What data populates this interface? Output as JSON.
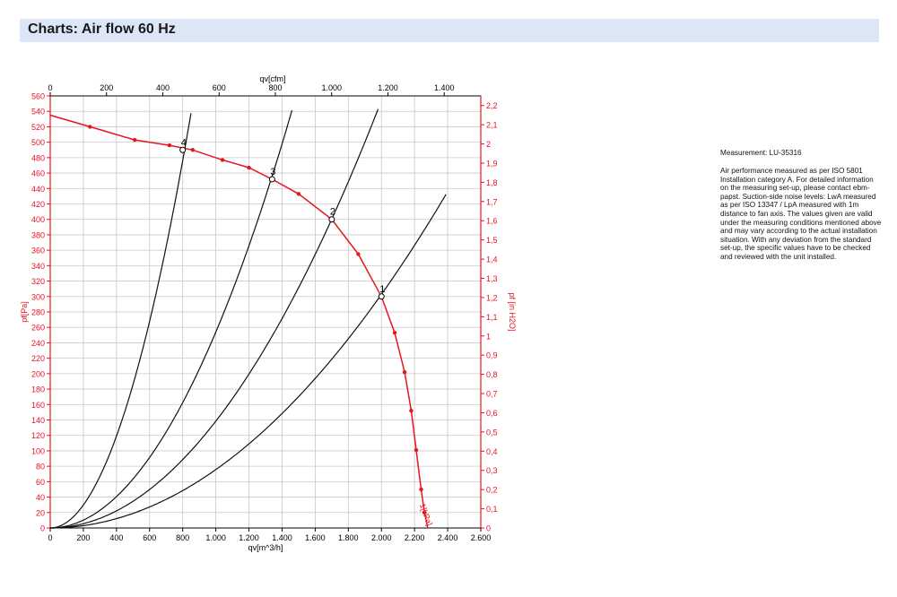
{
  "header": {
    "title": "Charts: Air flow 60 Hz"
  },
  "side_panel": {
    "measurement": "Measurement: LU-35316",
    "description": "Air performance measured as per ISO 5801 Installation category A. For detailed information on the measuring set-up, please contact ebm-papst. Suction-side noise levels: LwA measured as per ISO 13347 / LpA measured with 1m distance to fan axis. The values given are valid under the measuring conditions mentioned above and may vary according to the actual installation situation. With any deviation from the standard set-up, the specific values have to be checked and reviewed with the unit installed."
  },
  "colors": {
    "header_bg": "#dde6f7",
    "fan_curve": "#e8141e",
    "system_curves": "#111111",
    "grid": "#c8c8c8"
  },
  "chart_data": {
    "type": "line",
    "title": "",
    "xlabel": "qv[m^3/h]",
    "x2label": "qv[cfm]",
    "ylabel": "pf[Pa]",
    "y2label": "pf [in H2O]",
    "xlim": [
      0,
      2600
    ],
    "ylim": [
      0,
      560
    ],
    "x2lim": [
      0,
      1530
    ],
    "y2lim": [
      0,
      2.25
    ],
    "x_ticks": [
      "0",
      "200",
      "400",
      "600",
      "800",
      "1.000",
      "1.200",
      "1.400",
      "1.600",
      "1.800",
      "2.000",
      "2.200",
      "2.400",
      "2.600"
    ],
    "y_ticks": [
      "0",
      "20",
      "40",
      "60",
      "80",
      "100",
      "120",
      "140",
      "160",
      "180",
      "200",
      "220",
      "240",
      "260",
      "280",
      "300",
      "320",
      "340",
      "360",
      "380",
      "400",
      "420",
      "440",
      "460",
      "480",
      "500",
      "520",
      "540",
      "560"
    ],
    "x2_ticks": [
      "0",
      "200",
      "400",
      "600",
      "800",
      "1.000",
      "1.200",
      "1.400"
    ],
    "y2_ticks": [
      "0",
      "0,1",
      "0,2",
      "0,3",
      "0,4",
      "0,5",
      "0,6",
      "0,7",
      "0,8",
      "0,9",
      "1",
      "1,1",
      "1,2",
      "1,3",
      "1,4",
      "1,5",
      "1,6",
      "1,7",
      "1,8",
      "1,9",
      "2",
      "2,1",
      "2,2"
    ],
    "x2_values": [
      0,
      200,
      400,
      600,
      800,
      1000,
      1200,
      1400
    ],
    "y2_values": [
      0,
      0.1,
      0.2,
      0.3,
      0.4,
      0.5,
      0.6,
      0.7,
      0.8,
      0.9,
      1.0,
      1.1,
      1.2,
      1.3,
      1.4,
      1.5,
      1.6,
      1.7,
      1.8,
      1.9,
      2.0,
      2.1,
      2.2
    ],
    "grid": true,
    "series": [
      {
        "name": "",
        "kind": "fan_curve",
        "x": [
          0,
          240,
          510,
          720,
          860,
          1040,
          1200,
          1340,
          1500,
          1700,
          1860,
          2000,
          2080,
          2140,
          2180,
          2210,
          2240,
          2260,
          2280
        ],
        "y": [
          535,
          520,
          503,
          496,
          490,
          477,
          467,
          452,
          433,
          400,
          355,
          300,
          253,
          202,
          152,
          101,
          50,
          20,
          0
        ]
      },
      {
        "name": "",
        "kind": "system_curve",
        "k": 0.000744,
        "xmax": 850
      },
      {
        "name": "",
        "kind": "system_curve",
        "k": 0.000254,
        "xmax": 1460
      },
      {
        "name": "",
        "kind": "system_curve",
        "k": 0.0001385,
        "xmax": 1980
      },
      {
        "name": "",
        "kind": "system_curve",
        "k": 7.57e-05,
        "xmax": 2390
      }
    ],
    "operating_points": [
      {
        "label": "4",
        "x": 800,
        "y": 490
      },
      {
        "label": "3",
        "x": 1340,
        "y": 452
      },
      {
        "label": "2",
        "x": 1700,
        "y": 400
      },
      {
        "label": "1",
        "x": 2000,
        "y": 300
      }
    ],
    "annotations": [
      {
        "text": "1[kPa]",
        "x": 2230,
        "y": 30
      }
    ]
  }
}
